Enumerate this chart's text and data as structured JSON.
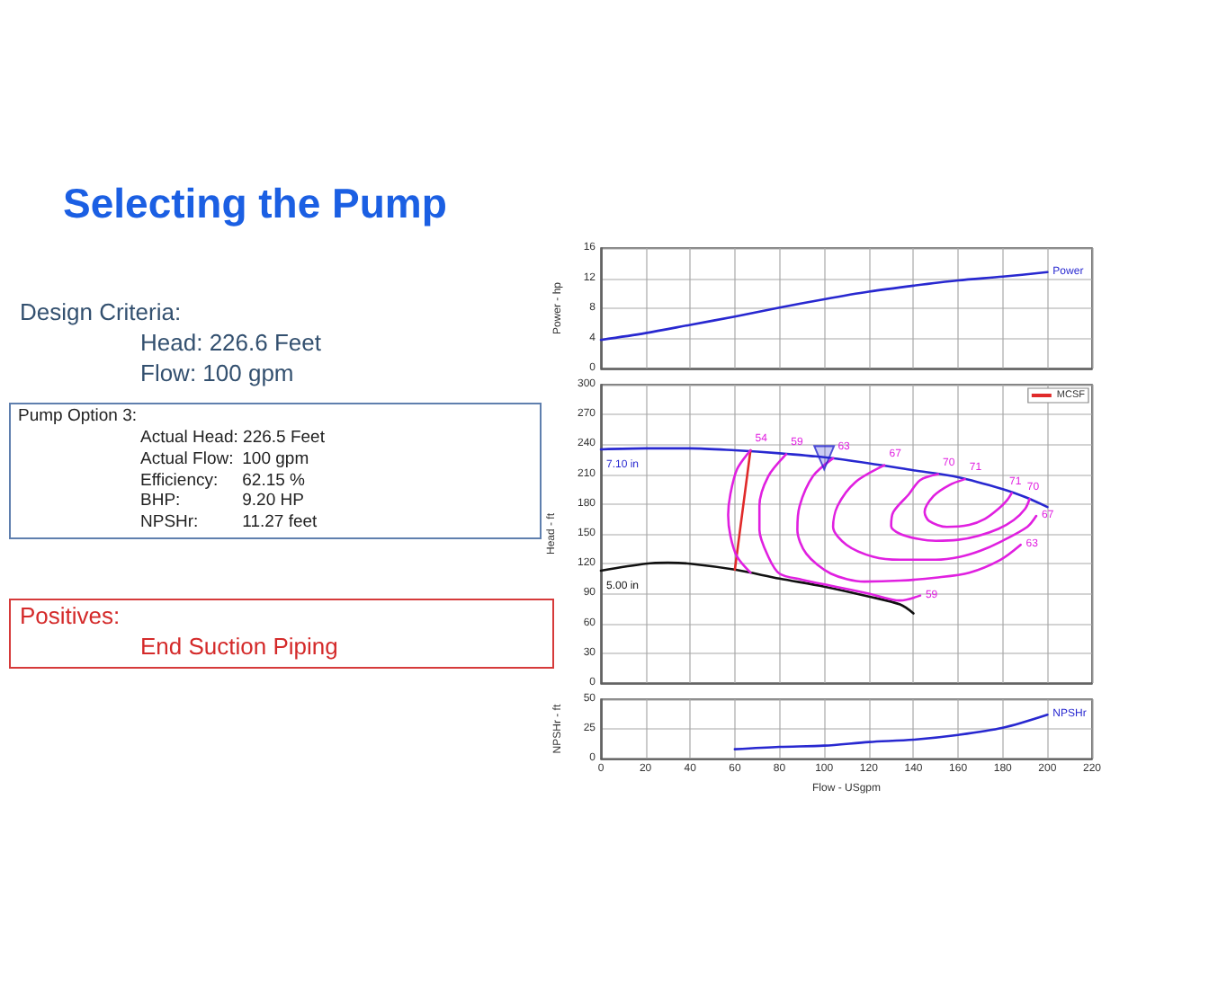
{
  "chart_data": [
    {
      "type": "other",
      "title": "Selecting the Pump",
      "subtitle": "Design Criteria:",
      "annotations": [
        "Head: 226.6 Feet",
        "Flow: 100 gpm"
      ]
    },
    {
      "type": "other",
      "title": "Pump Option 3:",
      "annotations": [
        "Actual Head: 226.5 Feet",
        "Actual Flow: 100 gpm",
        "Efficiency: 62.15 %",
        "BHP: 9.20 HP",
        "NPSHr: 11.27 feet"
      ]
    },
    {
      "type": "other",
      "title": "Positives:",
      "annotations": [
        "End Suction Piping"
      ]
    },
    {
      "type": "line",
      "x": [
        0,
        20,
        40,
        60,
        80,
        100,
        120,
        140,
        160,
        180,
        200
      ],
      "series": [
        {
          "name": "Power",
          "color": "#2828d0",
          "values": [
            3.8,
            4.7,
            5.8,
            6.9,
            8.1,
            9.2,
            10.2,
            11.0,
            11.7,
            12.2,
            12.8
          ]
        }
      ],
      "xlim": [
        0,
        220
      ],
      "xticks": [
        0,
        20,
        40,
        60,
        80,
        100,
        120,
        140,
        160,
        180,
        200,
        220
      ],
      "ylim": [
        0,
        16
      ],
      "yticks": [
        0,
        4,
        8,
        12,
        16
      ],
      "ylabel": "Power - hp",
      "grid": true,
      "tick_labels": "y"
    },
    {
      "type": "line",
      "series": [
        {
          "name": "7.10 in",
          "color": "#2828d0",
          "x": [
            0,
            20,
            40,
            60,
            80,
            100,
            120,
            140,
            160,
            180,
            190,
            200
          ],
          "values": [
            235,
            236,
            236,
            234,
            231,
            227,
            221,
            214,
            207,
            195,
            187,
            177
          ]
        },
        {
          "name": "5.00 in",
          "color": "#111111",
          "x": [
            0,
            20,
            30,
            40,
            60,
            80,
            100,
            120,
            134,
            140
          ],
          "values": [
            113,
            120,
            121,
            120,
            114,
            105,
            97,
            87,
            79,
            70
          ]
        },
        {
          "name": "MCSF",
          "color": "#e02a2a",
          "x": [
            67,
            60
          ],
          "values": [
            234,
            114
          ]
        },
        {
          "type": "scatter",
          "color": "#2828d0",
          "marker": "triangle",
          "x": [
            100
          ],
          "values": [
            226.5
          ]
        },
        {
          "name": "54",
          "color": "#e020e0",
          "x": [
            67,
            61,
            58,
            57,
            58,
            61,
            67
          ],
          "values": [
            234,
            215,
            190,
            169,
            148,
            127,
            111
          ]
        },
        {
          "name": "59",
          "color": "#e020e0",
          "x": [
            83,
            75,
            71,
            71,
            75,
            80,
            90,
            105,
            120,
            134,
            143
          ],
          "values": [
            230,
            208,
            178,
            154,
            127,
            110,
            104,
            97,
            90,
            83,
            88
          ]
        },
        {
          "name": "63",
          "color": "#e020e0",
          "x": [
            104,
            95,
            89,
            88,
            92,
            103,
            118,
            134,
            150,
            165,
            179,
            188
          ],
          "values": [
            226,
            208,
            178,
            154,
            130,
            110,
            102,
            103,
            106,
            111,
            124,
            139
          ]
        },
        {
          "name": "67",
          "color": "#e020e0",
          "x": [
            127,
            114,
            106,
            104,
            110,
            122,
            134,
            150,
            161,
            170,
            179,
            191,
            195
          ],
          "values": [
            219,
            202,
            178,
            157,
            139,
            127,
            124,
            124,
            127,
            133,
            142,
            157,
            168
          ]
        },
        {
          "name": "70",
          "color": "#e020e0",
          "x": [
            151,
            143,
            138,
            131,
            130,
            134,
            142,
            150,
            160,
            169,
            178,
            185,
            190,
            192
          ],
          "values": [
            210,
            204,
            190,
            172,
            158,
            150,
            145,
            143,
            144,
            148,
            155,
            164,
            175,
            185
          ]
        },
        {
          "name": "71",
          "color": "#e020e0",
          "x": [
            163,
            156,
            149,
            145,
            147,
            155,
            165,
            172,
            178,
            182,
            184
          ],
          "values": [
            205,
            199,
            188,
            172,
            163,
            157,
            159,
            165,
            175,
            184,
            191
          ]
        }
      ],
      "xlim": [
        0,
        220
      ],
      "xticks": [
        0,
        20,
        40,
        60,
        80,
        100,
        120,
        140,
        160,
        180,
        200,
        220
      ],
      "ylim": [
        0,
        300
      ],
      "yticks": [
        0,
        30,
        60,
        90,
        120,
        150,
        180,
        210,
        240,
        270,
        300
      ],
      "ylabel": "Head - ft",
      "grid": true,
      "legend": "top right",
      "tick_labels": "y"
    },
    {
      "type": "line",
      "x": [
        60,
        80,
        100,
        120,
        140,
        160,
        180,
        200
      ],
      "series": [
        {
          "name": "NPSHr",
          "color": "#2828d0",
          "values": [
            8,
            10,
            11,
            14,
            16,
            20,
            26,
            37
          ]
        }
      ],
      "xlim": [
        0,
        220
      ],
      "xticks": [
        0,
        20,
        40,
        60,
        80,
        100,
        120,
        140,
        160,
        180,
        200,
        220
      ],
      "ylim": [
        0,
        50
      ],
      "yticks": [
        0,
        25,
        50
      ],
      "xlabel": "Flow - USgpm",
      "ylabel": "NPSHr - ft",
      "grid": true
    }
  ]
}
